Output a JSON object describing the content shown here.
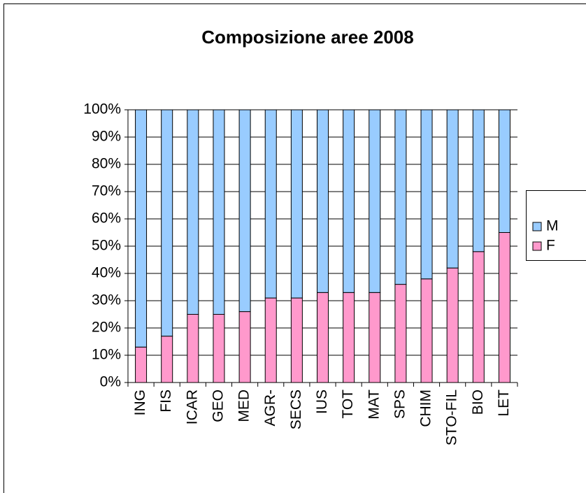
{
  "chart_data": {
    "type": "stacked_bar_100",
    "title": "Composizione aree 2008",
    "categories": [
      "ING",
      "FIS",
      "ICAR",
      "GEO",
      "MED",
      "AGR-",
      "SECS",
      "IUS",
      "TOT",
      "MAT",
      "SPS",
      "CHIM",
      "STO-FIL",
      "BIO",
      "LET"
    ],
    "series": [
      {
        "name": "F",
        "color": "#ff99cc",
        "values": [
          13,
          17,
          25,
          25,
          26,
          31,
          31,
          33,
          33,
          33,
          36,
          38,
          42,
          48,
          55
        ]
      },
      {
        "name": "M",
        "color": "#99ccff",
        "values": [
          87,
          83,
          75,
          75,
          74,
          69,
          69,
          67,
          67,
          67,
          64,
          62,
          58,
          52,
          45
        ]
      }
    ],
    "ylim": [
      0,
      100
    ],
    "yticks": [
      {
        "value": 0,
        "label": "0%"
      },
      {
        "value": 10,
        "label": "10%"
      },
      {
        "value": 20,
        "label": "20%"
      },
      {
        "value": 30,
        "label": "30%"
      },
      {
        "value": 40,
        "label": "40%"
      },
      {
        "value": 50,
        "label": "50%"
      },
      {
        "value": 60,
        "label": "60%"
      },
      {
        "value": 70,
        "label": "70%"
      },
      {
        "value": 80,
        "label": "80%"
      },
      {
        "value": 90,
        "label": "90%"
      },
      {
        "value": 100,
        "label": "100%"
      }
    ],
    "grid": true,
    "legend": "right"
  }
}
